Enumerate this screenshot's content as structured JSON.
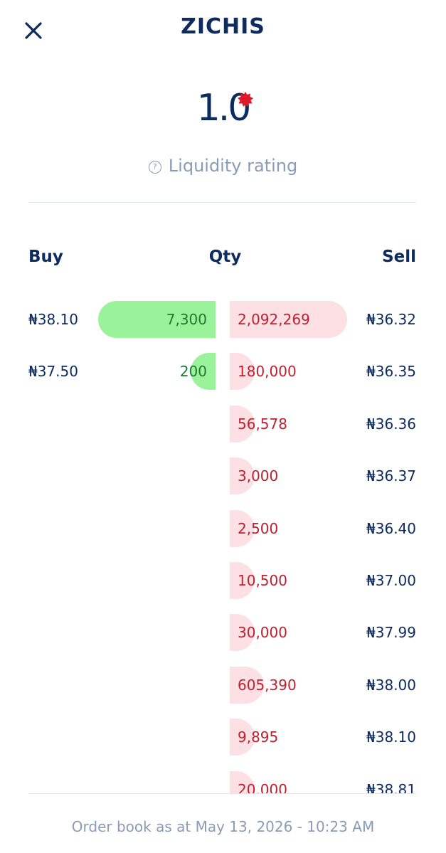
{
  "header": {
    "title": "ZICHIS"
  },
  "rating": {
    "value": "1.0",
    "label": "Liquidity rating"
  },
  "columns": [
    "Buy",
    "Qty",
    "Sell"
  ],
  "bids": [
    {
      "price": "₦38.10",
      "qty": {
        "value": 7300,
        "label": "7,300"
      }
    },
    {
      "price": "₦37.50",
      "qty": {
        "value": 200,
        "label": "200"
      }
    }
  ],
  "asks": [
    {
      "price": "₦36.32",
      "qty": {
        "value": 2092269,
        "label": "2,092,269"
      }
    },
    {
      "price": "₦36.35",
      "qty": {
        "value": 180000,
        "label": "180,000"
      }
    },
    {
      "price": "₦36.36",
      "qty": {
        "value": 56578,
        "label": "56,578"
      }
    },
    {
      "price": "₦36.37",
      "qty": {
        "value": 3000,
        "label": "3,000"
      }
    },
    {
      "price": "₦36.40",
      "qty": {
        "value": 2500,
        "label": "2,500"
      }
    },
    {
      "price": "₦37.00",
      "qty": {
        "value": 10500,
        "label": "10,500"
      }
    },
    {
      "price": "₦37.99",
      "qty": {
        "value": 30000,
        "label": "30,000"
      }
    },
    {
      "price": "₦38.00",
      "qty": {
        "value": 605390,
        "label": "605,390"
      }
    },
    {
      "price": "₦38.10",
      "qty": {
        "value": 9895,
        "label": "9,895"
      }
    },
    {
      "price": "₦38.81",
      "qty": {
        "value": 20000,
        "label": "20,000"
      }
    }
  ],
  "footer": "Order book as at May 13, 2026 - 10:23 AM"
}
